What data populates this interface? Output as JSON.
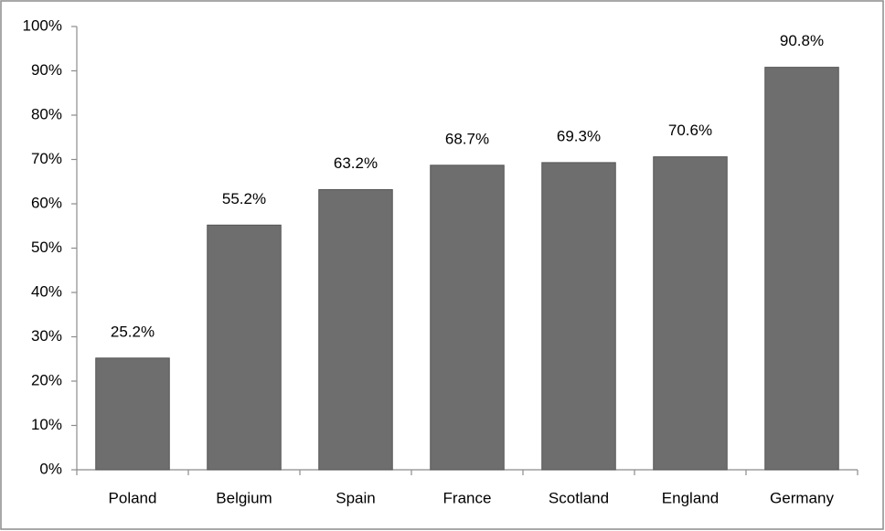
{
  "chart_data": {
    "type": "bar",
    "categories": [
      "Poland",
      "Belgium",
      "Spain",
      "France",
      "Scotland",
      "England",
      "Germany"
    ],
    "values": [
      25.2,
      55.2,
      63.2,
      68.7,
      69.3,
      70.6,
      90.8
    ],
    "value_labels": [
      "25.2%",
      "55.2%",
      "63.2%",
      "68.7%",
      "69.3%",
      "70.6%",
      "90.8%"
    ],
    "color": "#6e6e6e",
    "ylim": [
      0,
      100
    ],
    "yticks": [
      {
        "value": 0,
        "label": "0%"
      },
      {
        "value": 10,
        "label": "10%"
      },
      {
        "value": 20,
        "label": "20%"
      },
      {
        "value": 30,
        "label": "30%"
      },
      {
        "value": 40,
        "label": "40%"
      },
      {
        "value": 50,
        "label": "50%"
      },
      {
        "value": 60,
        "label": "60%"
      },
      {
        "value": 70,
        "label": "70%"
      },
      {
        "value": 80,
        "label": "80%"
      },
      {
        "value": 90,
        "label": "90%"
      },
      {
        "value": 100,
        "label": "100%"
      }
    ],
    "grid": false
  }
}
